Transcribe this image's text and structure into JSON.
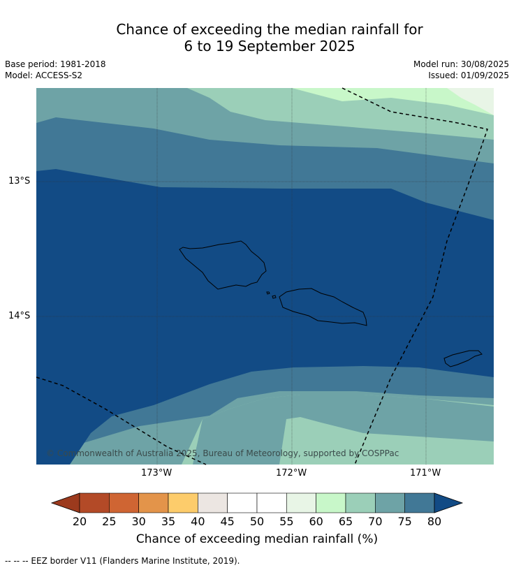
{
  "title_line1": "Chance of exceeding the median rainfall for",
  "title_line2": "6 to 19 September 2025",
  "meta_left": [
    "Base period: 1981-2018",
    "Model: ACCESS-S2"
  ],
  "meta_right": [
    "Model run: 30/08/2025",
    "Issued: 01/09/2025"
  ],
  "lat_labels": [
    "13°S",
    "14°S"
  ],
  "lon_labels": [
    "173°W",
    "172°W",
    "171°W"
  ],
  "copyright": "© Commonwealth of Australia 2025, Bureau of Meteorology, supported by COSPPac",
  "colorbar": {
    "title": "Chance of exceeding median rainfall (%)",
    "ticks": [
      "20",
      "25",
      "30",
      "35",
      "40",
      "45",
      "50",
      "55",
      "60",
      "65",
      "70",
      "75",
      "80"
    ],
    "colors": [
      "#b34a27",
      "#cf6533",
      "#e3944a",
      "#fdcc6b",
      "#ece6e2",
      "#ffffff",
      "#ffffff",
      "#e8f5e6",
      "#c8f7c9",
      "#9bcfb8",
      "#6ea3a6",
      "#417896"
    ],
    "under_color": "#9c3a1d",
    "over_color": "#124b85"
  },
  "footnote": "--  --  -- EEZ border V11 (Flanders Marine Institute, 2019).",
  "map_colors": {
    "c80": "#124b85",
    "c75": "#417896",
    "c70": "#6ea3a6",
    "c65": "#9bcfb8",
    "c60": "#c8f7c9",
    "c55": "#e8f5e6"
  }
}
